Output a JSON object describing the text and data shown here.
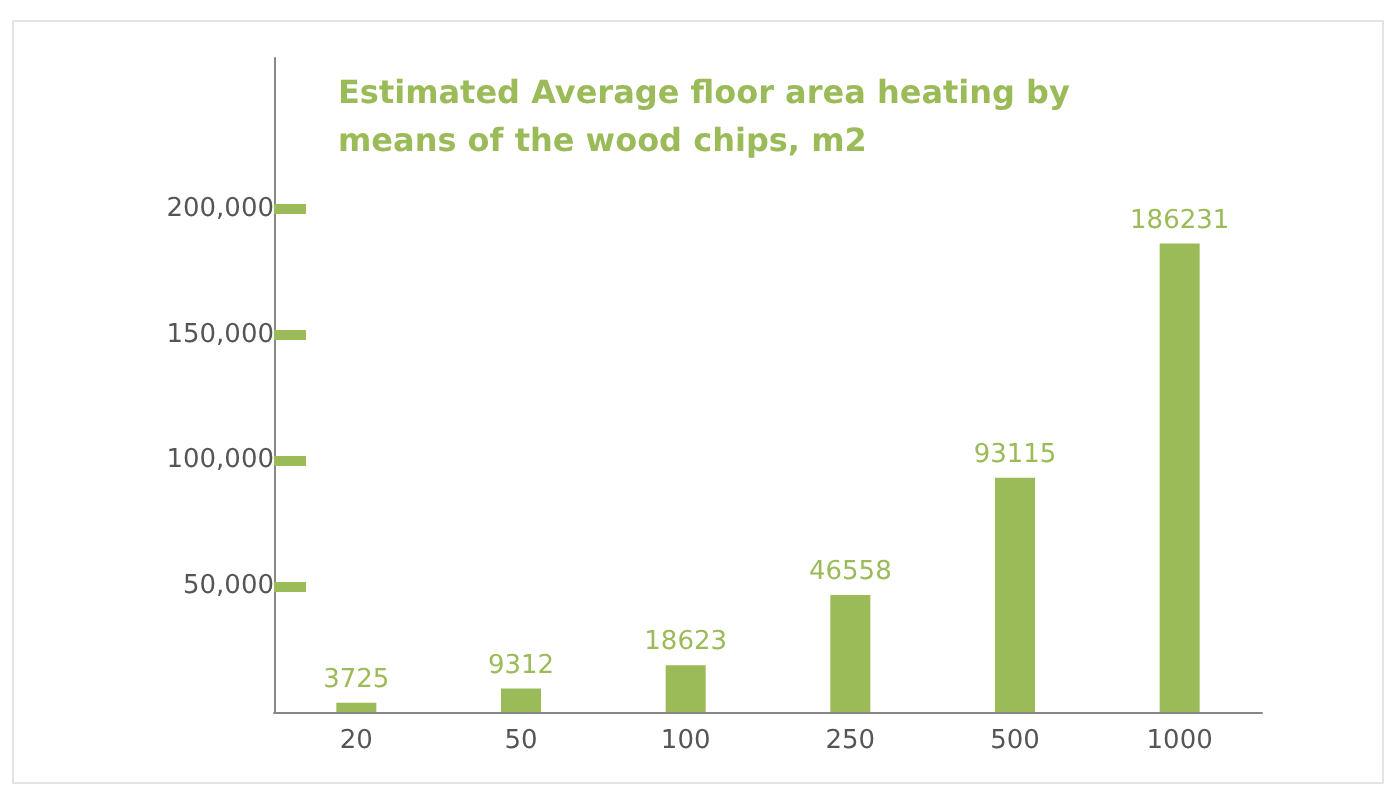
{
  "chart_data": {
    "type": "bar",
    "title": "Estimated Average floor area heating by means of the wood chips, m2",
    "categories": [
      "20",
      "50",
      "100",
      "250",
      "500",
      "1000"
    ],
    "values": [
      3725,
      9312,
      18623,
      46558,
      93115,
      186231
    ],
    "color": "#9bbb59",
    "ylim": [
      0,
      260000
    ],
    "yticks": [
      {
        "value": 50000,
        "label": "50,000"
      },
      {
        "value": 100000,
        "label": "100,000"
      },
      {
        "value": 150000,
        "label": "150,000"
      },
      {
        "value": 200000,
        "label": "200,000"
      }
    ],
    "data_labels": true
  }
}
